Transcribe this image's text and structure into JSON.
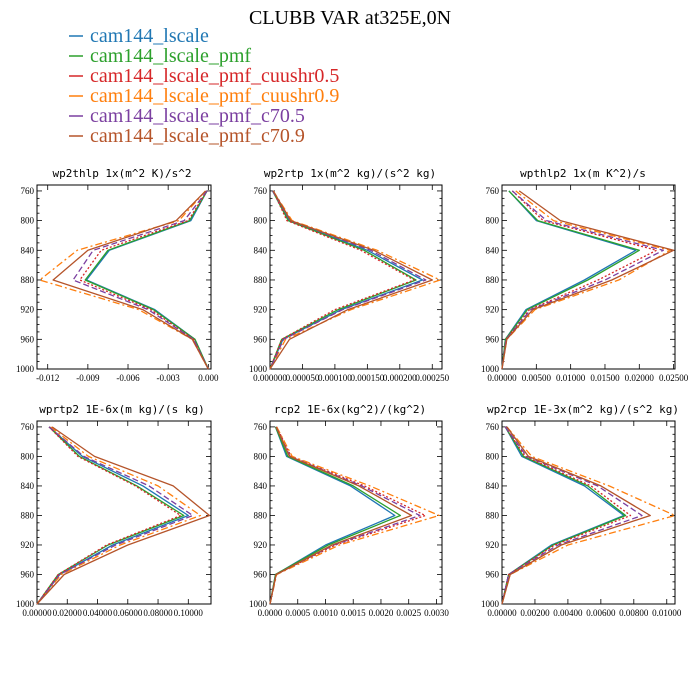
{
  "figure_title": "CLUBB VAR at325E,0N",
  "legend": [
    {
      "label": "cam144_lscale",
      "color": "#1f77b4",
      "dash": "solid"
    },
    {
      "label": "cam144_lscale_pmf",
      "color": "#2ca02c",
      "dash": "solid"
    },
    {
      "label": "cam144_lscale_pmf_cuushr0.5",
      "color": "#d62728",
      "dash": "dotted"
    },
    {
      "label": "cam144_lscale_pmf_cuushr0.9",
      "color": "#ff7f0e",
      "dash": "dashdot"
    },
    {
      "label": "cam144_lscale_pmf_c70.5",
      "color": "#7b3fa0",
      "dash": "dashed"
    },
    {
      "label": "cam144_lscale_pmf_c70.9",
      "color": "#b5542a",
      "dash": "solid"
    }
  ],
  "chart_data": [
    {
      "type": "line",
      "title": "wp2thlp  1x(m^2 K)/s^2",
      "y": [
        760,
        800,
        840,
        880,
        920,
        960,
        1000
      ],
      "ylim": [
        1000,
        752
      ],
      "yticks": [
        "760",
        "800",
        "840",
        "880",
        "920",
        "960",
        "1000"
      ],
      "xlim": [
        -0.0128,
        0.0002
      ],
      "xticks": [
        -0.012,
        -0.009,
        -0.006,
        -0.003,
        0.0
      ],
      "xtick_labels": [
        "-0.012",
        "-0.009",
        "-0.006",
        "-0.003",
        "0.000"
      ],
      "series": [
        {
          "name": "cam144_lscale",
          "values": [
            -0.0001,
            -0.0013,
            -0.0074,
            -0.0091,
            -0.004,
            -0.001,
            0.0
          ]
        },
        {
          "name": "cam144_lscale_pmf",
          "values": [
            -0.0001,
            -0.0014,
            -0.0075,
            -0.0092,
            -0.0041,
            -0.001,
            0.0
          ]
        },
        {
          "name": "cam144_lscale_pmf_cuushr0.5",
          "values": [
            -0.0001,
            -0.0015,
            -0.008,
            -0.0096,
            -0.0043,
            -0.0011,
            0.0
          ]
        },
        {
          "name": "cam144_lscale_pmf_cuushr0.9",
          "values": [
            -0.0002,
            -0.0022,
            -0.0098,
            -0.0126,
            -0.0052,
            -0.0012,
            0.0
          ]
        },
        {
          "name": "cam144_lscale_pmf_c70.5",
          "values": [
            -0.0001,
            -0.0018,
            -0.0086,
            -0.0101,
            -0.0045,
            -0.0011,
            0.0
          ]
        },
        {
          "name": "cam144_lscale_pmf_c70.9",
          "values": [
            -0.0002,
            -0.0024,
            -0.009,
            -0.0116,
            -0.0049,
            -0.0012,
            0.0
          ]
        }
      ]
    },
    {
      "type": "line",
      "title": "wp2rtp  1x(m^2 kg)/(s^2 kg)",
      "y": [
        760,
        800,
        840,
        880,
        920,
        960,
        1000
      ],
      "ylim": [
        1000,
        752
      ],
      "yticks": [
        "760",
        "800",
        "840",
        "880",
        "920",
        "960",
        "1000"
      ],
      "xlim": [
        0,
        0.000265
      ],
      "xticks": [
        0,
        5e-05,
        0.0001,
        0.00015,
        0.0002,
        0.00025
      ],
      "xtick_labels": [
        "0.000000",
        "0.000050",
        "0.000100",
        "0.000150",
        "0.000200",
        "0.000250"
      ],
      "series": [
        {
          "name": "cam144_lscale",
          "values": [
            4e-06,
            3e-05,
            0.00015,
            0.000235,
            0.00011,
            2e-05,
            0.0
          ]
        },
        {
          "name": "cam144_lscale_pmf",
          "values": [
            4e-06,
            2.8e-05,
            0.000145,
            0.000225,
            0.000105,
            1.8e-05,
            0.0
          ]
        },
        {
          "name": "cam144_lscale_pmf_cuushr0.5",
          "values": [
            5e-06,
            2.6e-05,
            0.00014,
            0.000222,
            0.0001,
            1.8e-05,
            0.0
          ]
        },
        {
          "name": "cam144_lscale_pmf_cuushr0.9",
          "values": [
            5e-06,
            3.4e-05,
            0.000165,
            0.000262,
            0.000125,
            2.4e-05,
            0.0
          ]
        },
        {
          "name": "cam144_lscale_pmf_c70.5",
          "values": [
            4e-06,
            3.1e-05,
            0.000155,
            0.00024,
            0.000112,
            2.1e-05,
            0.0
          ]
        },
        {
          "name": "cam144_lscale_pmf_c70.9",
          "values": [
            5e-06,
            3.2e-05,
            0.00016,
            0.00025,
            0.00012,
            3e-05,
            0.0
          ]
        }
      ]
    },
    {
      "type": "line",
      "title": "wpthlp2  1x(m K^2)/s",
      "y": [
        760,
        800,
        840,
        880,
        920,
        960,
        1000
      ],
      "ylim": [
        1000,
        752
      ],
      "yticks": [
        "760",
        "800",
        "840",
        "880",
        "920",
        "960",
        "1000"
      ],
      "xlim": [
        0,
        0.0252
      ],
      "xticks": [
        0,
        0.005,
        0.01,
        0.015,
        0.02,
        0.025
      ],
      "xtick_labels": [
        "0.00000",
        "0.00500",
        "0.01000",
        "0.01500",
        "0.02000",
        "0.02500"
      ],
      "series": [
        {
          "name": "cam144_lscale",
          "values": [
            0.001,
            0.005,
            0.0195,
            0.012,
            0.0035,
            0.0005,
            0.0
          ]
        },
        {
          "name": "cam144_lscale_pmf",
          "values": [
            0.001,
            0.0052,
            0.02,
            0.0125,
            0.0037,
            0.0005,
            0.0
          ]
        },
        {
          "name": "cam144_lscale_pmf_cuushr0.5",
          "values": [
            0.0015,
            0.006,
            0.0225,
            0.014,
            0.004,
            0.0006,
            0.0
          ]
        },
        {
          "name": "cam144_lscale_pmf_cuushr0.9",
          "values": [
            0.002,
            0.0075,
            0.0245,
            0.017,
            0.0048,
            0.0007,
            0.0
          ]
        },
        {
          "name": "cam144_lscale_pmf_c70.5",
          "values": [
            0.0015,
            0.0065,
            0.0235,
            0.015,
            0.0042,
            0.0006,
            0.0
          ]
        },
        {
          "name": "cam144_lscale_pmf_c70.9",
          "values": [
            0.0025,
            0.0085,
            0.025,
            0.016,
            0.0045,
            0.0007,
            0.0
          ]
        }
      ]
    },
    {
      "type": "line",
      "title": "wprtp2  1E-6x(m kg)/(s kg)",
      "y": [
        760,
        800,
        840,
        880,
        920,
        960,
        1000
      ],
      "ylim": [
        1000,
        752
      ],
      "yticks": [
        "760",
        "800",
        "840",
        "880",
        "920",
        "960",
        "1000"
      ],
      "xlim": [
        0,
        0.115
      ],
      "xticks": [
        0,
        0.02,
        0.04,
        0.06,
        0.08,
        0.1
      ],
      "xtick_labels": [
        "0.00000",
        "0.02000",
        "0.04000",
        "0.06000",
        "0.08000",
        "0.10000"
      ],
      "series": [
        {
          "name": "cam144_lscale",
          "values": [
            0.008,
            0.03,
            0.07,
            0.1,
            0.05,
            0.015,
            0.0
          ]
        },
        {
          "name": "cam144_lscale_pmf",
          "values": [
            0.008,
            0.028,
            0.066,
            0.097,
            0.047,
            0.014,
            0.0
          ]
        },
        {
          "name": "cam144_lscale_pmf_cuushr0.5",
          "values": [
            0.008,
            0.027,
            0.065,
            0.095,
            0.046,
            0.014,
            0.0
          ]
        },
        {
          "name": "cam144_lscale_pmf_cuushr0.9",
          "values": [
            0.009,
            0.034,
            0.08,
            0.108,
            0.055,
            0.016,
            0.0
          ]
        },
        {
          "name": "cam144_lscale_pmf_c70.5",
          "values": [
            0.008,
            0.031,
            0.074,
            0.103,
            0.052,
            0.015,
            0.0
          ]
        },
        {
          "name": "cam144_lscale_pmf_c70.9",
          "values": [
            0.01,
            0.038,
            0.09,
            0.114,
            0.06,
            0.018,
            0.0
          ]
        }
      ]
    },
    {
      "type": "line",
      "title": "rcp2  1E-6x(kg^2)/(kg^2)",
      "y": [
        760,
        800,
        840,
        880,
        920,
        960,
        1000
      ],
      "ylim": [
        1000,
        752
      ],
      "yticks": [
        "760",
        "800",
        "840",
        "880",
        "920",
        "960",
        "1000"
      ],
      "xlim": [
        0,
        0.0031
      ],
      "xticks": [
        0,
        0.0005,
        0.001,
        0.0015,
        0.002,
        0.0025,
        0.003
      ],
      "xtick_labels": [
        "0.0000",
        "0.0005",
        "0.0010",
        "0.0015",
        "0.0020",
        "0.0025",
        "0.0030"
      ],
      "series": [
        {
          "name": "cam144_lscale",
          "values": [
            0.0001,
            0.0003,
            0.00145,
            0.00225,
            0.001,
            0.0001,
            0.0
          ]
        },
        {
          "name": "cam144_lscale_pmf",
          "values": [
            0.0001,
            0.00032,
            0.0015,
            0.00235,
            0.00105,
            0.0001,
            0.0
          ]
        },
        {
          "name": "cam144_lscale_pmf_cuushr0.5",
          "values": [
            0.00012,
            0.00038,
            0.0017,
            0.0028,
            0.00118,
            0.00011,
            0.0
          ]
        },
        {
          "name": "cam144_lscale_pmf_cuushr0.9",
          "values": [
            0.00012,
            0.0004,
            0.0018,
            0.00305,
            0.00125,
            0.00012,
            0.0
          ]
        },
        {
          "name": "cam144_lscale_pmf_c70.5",
          "values": [
            0.00011,
            0.00036,
            0.00165,
            0.0027,
            0.00115,
            0.00011,
            0.0
          ]
        },
        {
          "name": "cam144_lscale_pmf_c70.9",
          "values": [
            0.00011,
            0.00035,
            0.0016,
            0.00255,
            0.00112,
            0.00011,
            0.0
          ]
        }
      ]
    },
    {
      "type": "line",
      "title": "wp2rcp  1E-3x(m^2 kg)/(s^2 kg)",
      "y": [
        760,
        800,
        840,
        880,
        920,
        960,
        1000
      ],
      "ylim": [
        1000,
        752
      ],
      "yticks": [
        "760",
        "800",
        "840",
        "880",
        "920",
        "960",
        "1000"
      ],
      "xlim": [
        0,
        0.0105
      ],
      "xticks": [
        0,
        0.002,
        0.004,
        0.006,
        0.008,
        0.01
      ],
      "xtick_labels": [
        "0.00000",
        "0.00200",
        "0.00400",
        "0.00600",
        "0.00800",
        "0.01000"
      ],
      "series": [
        {
          "name": "cam144_lscale",
          "values": [
            0.0002,
            0.0012,
            0.005,
            0.0074,
            0.003,
            0.0004,
            0.0
          ]
        },
        {
          "name": "cam144_lscale_pmf",
          "values": [
            0.0002,
            0.0013,
            0.0052,
            0.0075,
            0.0031,
            0.0004,
            0.0
          ]
        },
        {
          "name": "cam144_lscale_pmf_cuushr0.5",
          "values": [
            0.0002,
            0.0014,
            0.0054,
            0.0078,
            0.0032,
            0.0004,
            0.0
          ]
        },
        {
          "name": "cam144_lscale_pmf_cuushr0.9",
          "values": [
            0.0003,
            0.0018,
            0.0065,
            0.0105,
            0.004,
            0.0005,
            0.0
          ]
        },
        {
          "name": "cam144_lscale_pmf_c70.5",
          "values": [
            0.0002,
            0.0015,
            0.0058,
            0.0085,
            0.0034,
            0.0004,
            0.0
          ]
        },
        {
          "name": "cam144_lscale_pmf_c70.9",
          "values": [
            0.0003,
            0.0016,
            0.006,
            0.009,
            0.0036,
            0.0005,
            0.0
          ]
        }
      ]
    }
  ]
}
